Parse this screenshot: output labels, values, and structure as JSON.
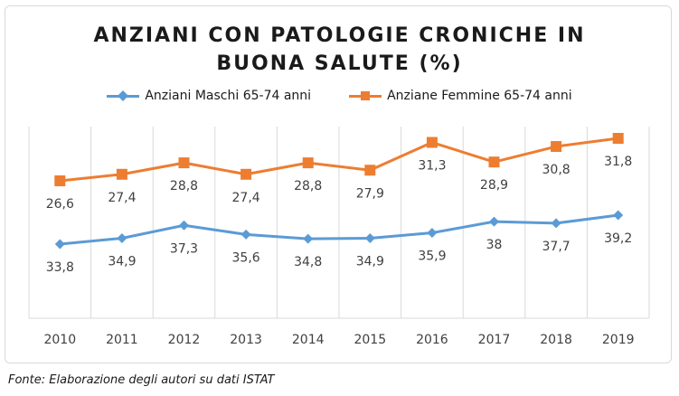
{
  "chart_data": {
    "type": "line",
    "title_lines": [
      "ANZIANI CON PATOLOGIE CRONICHE IN",
      "BUONA SALUTE (%)"
    ],
    "categories": [
      "2010",
      "2011",
      "2012",
      "2013",
      "2014",
      "2015",
      "2016",
      "2017",
      "2018",
      "2019"
    ],
    "series": [
      {
        "name": "Anziani Maschi 65-74 anni",
        "color": "#5b9bd5",
        "marker": "diamond",
        "values": [
          33.8,
          34.9,
          37.3,
          35.6,
          34.8,
          34.9,
          35.9,
          38,
          37.7,
          39.2
        ],
        "labels": [
          "33,8",
          "34,9",
          "37,3",
          "35,6",
          "34,8",
          "34,9",
          "35,9",
          "38",
          "37,7",
          "39,2"
        ]
      },
      {
        "name": "Anziane Femmine 65-74 anni",
        "color": "#ed7d31",
        "marker": "square",
        "values": [
          26.6,
          27.4,
          28.8,
          27.4,
          28.8,
          27.9,
          31.3,
          28.9,
          30.8,
          31.8
        ],
        "labels": [
          "26,6",
          "27,4",
          "28,8",
          "27,4",
          "28,8",
          "27,9",
          "31,3",
          "28,9",
          "30,8",
          "31,8"
        ]
      }
    ],
    "legend_position": "top",
    "grid": "vertical",
    "axis_line_color": "#d9d9d9"
  },
  "source": "Fonte: Elaborazione degli autori su dati ISTAT"
}
